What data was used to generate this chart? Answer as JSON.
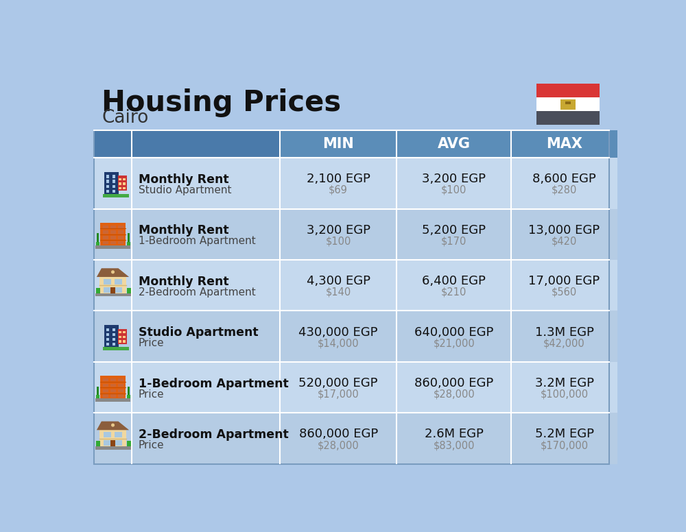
{
  "title": "Housing Prices",
  "subtitle": "Cairo",
  "bg_color": "#adc8e8",
  "header_bg": "#5b8db8",
  "header_text_color": "#ffffff",
  "row_bg_even": "#c5d9ee",
  "row_bg_odd": "#b5cce4",
  "divider_color": "#ffffff",
  "col_header_labels": [
    "MIN",
    "AVG",
    "MAX"
  ],
  "flag_red": "#d93535",
  "flag_white": "#ffffff",
  "flag_dark": "#4a4e5a",
  "flag_gold": "#c8a832",
  "rows": [
    {
      "bold_label": "Monthly Rent",
      "sub_label": "Studio Apartment",
      "icon_type": "office_blue",
      "min_main": "2,100 EGP",
      "min_sub": "$69",
      "avg_main": "3,200 EGP",
      "avg_sub": "$100",
      "max_main": "8,600 EGP",
      "max_sub": "$280"
    },
    {
      "bold_label": "Monthly Rent",
      "sub_label": "1-Bedroom Apartment",
      "icon_type": "apartment_orange",
      "min_main": "3,200 EGP",
      "min_sub": "$100",
      "avg_main": "5,200 EGP",
      "avg_sub": "$170",
      "max_main": "13,000 EGP",
      "max_sub": "$420"
    },
    {
      "bold_label": "Monthly Rent",
      "sub_label": "2-Bedroom Apartment",
      "icon_type": "house_beige",
      "min_main": "4,300 EGP",
      "min_sub": "$140",
      "avg_main": "6,400 EGP",
      "avg_sub": "$210",
      "max_main": "17,000 EGP",
      "max_sub": "$560"
    },
    {
      "bold_label": "Studio Apartment",
      "sub_label": "Price",
      "icon_type": "office_blue",
      "min_main": "430,000 EGP",
      "min_sub": "$14,000",
      "avg_main": "640,000 EGP",
      "avg_sub": "$21,000",
      "max_main": "1.3M EGP",
      "max_sub": "$42,000"
    },
    {
      "bold_label": "1-Bedroom Apartment",
      "sub_label": "Price",
      "icon_type": "apartment_orange",
      "min_main": "520,000 EGP",
      "min_sub": "$17,000",
      "avg_main": "860,000 EGP",
      "avg_sub": "$28,000",
      "max_main": "3.2M EGP",
      "max_sub": "$100,000"
    },
    {
      "bold_label": "2-Bedroom Apartment",
      "sub_label": "Price",
      "icon_type": "house_beige",
      "min_main": "860,000 EGP",
      "min_sub": "$28,000",
      "avg_main": "2.6M EGP",
      "avg_sub": "$83,000",
      "max_main": "5.2M EGP",
      "max_sub": "$170,000"
    }
  ]
}
